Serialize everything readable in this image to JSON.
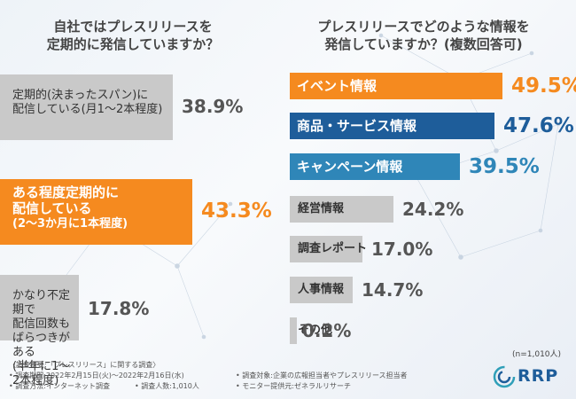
{
  "left_title": [
    "自社ではプレスリリースを",
    "定期的に発信していますか？"
  ],
  "right_title": [
    "プレスリリースでどのような情報を",
    "発信していますか？(複数回答可)"
  ],
  "sample_size": "(n=1,010人)",
  "logo_text": "RRP",
  "notes": [
    "〈調査概要:「プレスリリース」に関する調査〉",
    "• 調査期間:2022年2月15日(火)～2022年2月16日(水)",
    "• 調査方法:インターネット調査",
    "• 調査人数:1,010人",
    "• 調査対象:企業の広報担当者やプレスリリース担当者",
    "• モニター提供元:ゼネラルリサーチ"
  ],
  "colors": {
    "orange": "#f58a1f",
    "navy": "#1e5d9a",
    "teal": "#2f86b8",
    "gray": "#c9c9c9"
  },
  "chart_data": [
    {
      "type": "bar",
      "orientation": "horizontal",
      "title": "自社ではプレスリリースを定期的に発信していますか？",
      "categories": [
        [
          "定期的(決まったスパン)に",
          "配信している(月1～2本程度)"
        ],
        [
          "ある程度定期的に",
          "配信している",
          "(2～3か月に1本程度)"
        ],
        [
          "かなり不定期で",
          "配信回数もばらつきがある",
          "(半年に1～2本程度)"
        ]
      ],
      "values": [
        38.9,
        43.3,
        17.8
      ],
      "value_labels": [
        "38.9%",
        "43.3%",
        "17.8%"
      ],
      "unit": "%",
      "highlight_index": 1
    },
    {
      "type": "bar",
      "orientation": "horizontal",
      "title": "プレスリリースでどのような情報を発信していますか？(複数回答可)",
      "categories": [
        "イベント情報",
        "商品・サービス情報",
        "キャンペーン情報",
        "経営情報",
        "調査レポート",
        "人事情報",
        "その他"
      ],
      "values": [
        49.5,
        47.6,
        39.5,
        24.2,
        17.0,
        14.7,
        0.2
      ],
      "value_labels": [
        "49.5%",
        "47.6%",
        "39.5%",
        "24.2%",
        "17.0%",
        "14.7%",
        "0.2%"
      ],
      "unit": "%"
    }
  ]
}
